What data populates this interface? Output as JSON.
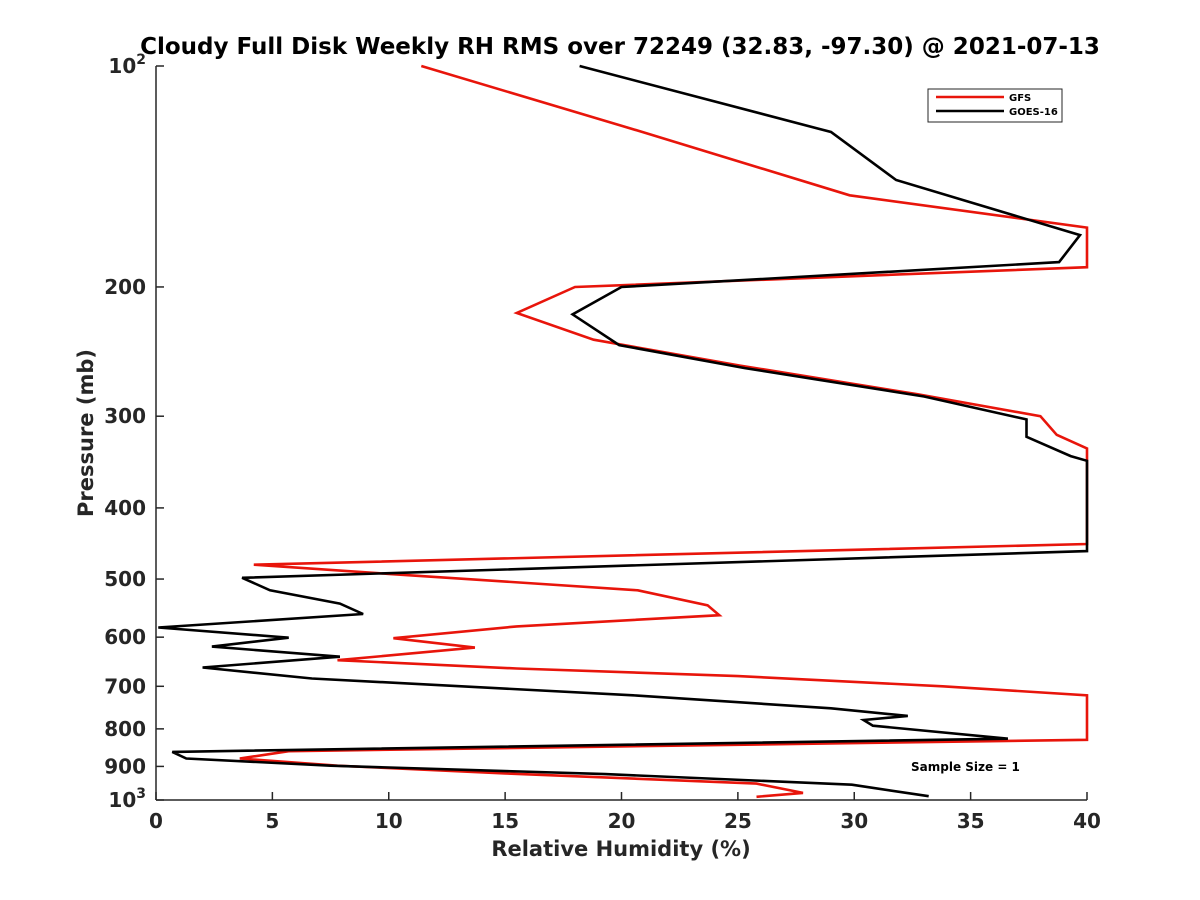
{
  "chart_data": {
    "type": "line",
    "title": "Cloudy Full Disk Weekly RH RMS over 72249 (32.83, -97.30) @ 2021-07-13",
    "xlabel": "Relative Humidity (%)",
    "ylabel": "Pressure (mb)",
    "xlim": [
      0,
      40
    ],
    "ylim": [
      100,
      1000
    ],
    "y_scale": "log",
    "y_reversed": true,
    "grid": false,
    "legend_position": "top-right",
    "x_ticks": [
      "0",
      "5",
      "10",
      "15",
      "20",
      "25",
      "30",
      "35",
      "40"
    ],
    "y_ticks": [
      {
        "value": 100,
        "label": "10",
        "sup": "2"
      },
      {
        "value": 200,
        "label": "200",
        "sup": ""
      },
      {
        "value": 300,
        "label": "300",
        "sup": ""
      },
      {
        "value": 400,
        "label": "400",
        "sup": ""
      },
      {
        "value": 500,
        "label": "500",
        "sup": ""
      },
      {
        "value": 600,
        "label": "600",
        "sup": ""
      },
      {
        "value": 700,
        "label": "700",
        "sup": ""
      },
      {
        "value": 800,
        "label": "800",
        "sup": ""
      },
      {
        "value": 900,
        "label": "900",
        "sup": ""
      },
      {
        "value": 1000,
        "label": "10",
        "sup": "3"
      }
    ],
    "annotation": "Sample Size = 1",
    "series": [
      {
        "name": "GFS",
        "color": "#e8150b",
        "points": [
          [
            11.4,
            100
          ],
          [
            20.9,
            123
          ],
          [
            29.8,
            150
          ],
          [
            40.0,
            166
          ],
          [
            40.0,
            188
          ],
          [
            18.0,
            200
          ],
          [
            15.5,
            217
          ],
          [
            18.8,
            236
          ],
          [
            25.1,
            256
          ],
          [
            32.7,
            280
          ],
          [
            38.0,
            300
          ],
          [
            38.7,
            318
          ],
          [
            40.0,
            332
          ],
          [
            40.0,
            448
          ],
          [
            4.2,
            478
          ],
          [
            10.0,
            492
          ],
          [
            20.7,
            518
          ],
          [
            23.7,
            543
          ],
          [
            24.2,
            560
          ],
          [
            15.5,
            580
          ],
          [
            10.2,
            602
          ],
          [
            13.7,
            620
          ],
          [
            7.8,
            645
          ],
          [
            15.5,
            662
          ],
          [
            25.0,
            678
          ],
          [
            33.8,
            700
          ],
          [
            40.0,
            720
          ],
          [
            40.0,
            828
          ],
          [
            5.7,
            858
          ],
          [
            3.6,
            878
          ],
          [
            7.8,
            898
          ],
          [
            15.0,
            920
          ],
          [
            25.8,
            950
          ],
          [
            27.8,
            978
          ],
          [
            25.8,
            990
          ]
        ]
      },
      {
        "name": "GOES-16",
        "color": "#000000",
        "points": [
          [
            18.2,
            100
          ],
          [
            29.0,
            123
          ],
          [
            31.8,
            143
          ],
          [
            39.7,
            170
          ],
          [
            38.8,
            185
          ],
          [
            20.0,
            200
          ],
          [
            17.9,
            218
          ],
          [
            19.9,
            240
          ],
          [
            25.3,
            258
          ],
          [
            33.0,
            282
          ],
          [
            37.4,
            303
          ],
          [
            37.4,
            320
          ],
          [
            39.3,
            340
          ],
          [
            40.0,
            345
          ],
          [
            40.0,
            458
          ],
          [
            3.7,
            498
          ],
          [
            4.9,
            518
          ],
          [
            7.9,
            540
          ],
          [
            8.9,
            558
          ],
          [
            0.1,
            582
          ],
          [
            5.7,
            601
          ],
          [
            2.4,
            618
          ],
          [
            7.9,
            638
          ],
          [
            2.0,
            660
          ],
          [
            6.7,
            683
          ],
          [
            20.5,
            720
          ],
          [
            29.0,
            750
          ],
          [
            32.3,
            768
          ],
          [
            30.4,
            778
          ],
          [
            30.8,
            792
          ],
          [
            36.6,
            825
          ],
          [
            0.7,
            860
          ],
          [
            1.3,
            878
          ],
          [
            7.5,
            898
          ],
          [
            19.3,
            922
          ],
          [
            29.9,
            953
          ],
          [
            33.2,
            988
          ]
        ]
      }
    ]
  }
}
